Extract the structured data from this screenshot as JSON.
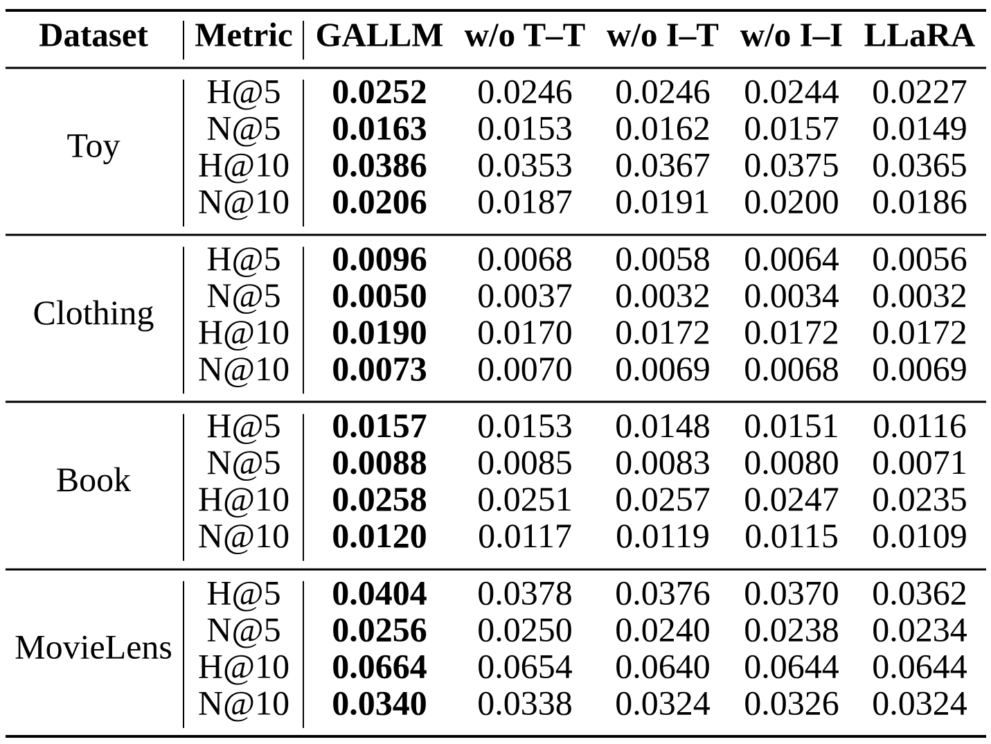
{
  "table": {
    "header": [
      "Dataset",
      "Metric",
      "GALLM",
      "w/o T–T",
      "w/o I–T",
      "w/o I–I",
      "LLaRA"
    ],
    "groups": [
      {
        "dataset": "Toy",
        "rows": [
          [
            "H@5",
            "0.0252",
            "0.0246",
            "0.0246",
            "0.0244",
            "0.0227"
          ],
          [
            "N@5",
            "0.0163",
            "0.0153",
            "0.0162",
            "0.0157",
            "0.0149"
          ],
          [
            "H@10",
            "0.0386",
            "0.0353",
            "0.0367",
            "0.0375",
            "0.0365"
          ],
          [
            "N@10",
            "0.0206",
            "0.0187",
            "0.0191",
            "0.0200",
            "0.0186"
          ]
        ]
      },
      {
        "dataset": "Clothing",
        "rows": [
          [
            "H@5",
            "0.0096",
            "0.0068",
            "0.0058",
            "0.0064",
            "0.0056"
          ],
          [
            "N@5",
            "0.0050",
            "0.0037",
            "0.0032",
            "0.0034",
            "0.0032"
          ],
          [
            "H@10",
            "0.0190",
            "0.0170",
            "0.0172",
            "0.0172",
            "0.0172"
          ],
          [
            "N@10",
            "0.0073",
            "0.0070",
            "0.0069",
            "0.0068",
            "0.0069"
          ]
        ]
      },
      {
        "dataset": "Book",
        "rows": [
          [
            "H@5",
            "0.0157",
            "0.0153",
            "0.0148",
            "0.0151",
            "0.0116"
          ],
          [
            "N@5",
            "0.0088",
            "0.0085",
            "0.0083",
            "0.0080",
            "0.0071"
          ],
          [
            "H@10",
            "0.0258",
            "0.0251",
            "0.0257",
            "0.0247",
            "0.0235"
          ],
          [
            "N@10",
            "0.0120",
            "0.0117",
            "0.0119",
            "0.0115",
            "0.0109"
          ]
        ]
      },
      {
        "dataset": "MovieLens",
        "rows": [
          [
            "H@5",
            "0.0404",
            "0.0378",
            "0.0376",
            "0.0370",
            "0.0362"
          ],
          [
            "N@5",
            "0.0256",
            "0.0250",
            "0.0240",
            "0.0238",
            "0.0234"
          ],
          [
            "H@10",
            "0.0664",
            "0.0654",
            "0.0640",
            "0.0644",
            "0.0644"
          ],
          [
            "N@10",
            "0.0340",
            "0.0338",
            "0.0324",
            "0.0326",
            "0.0324"
          ]
        ]
      }
    ]
  }
}
